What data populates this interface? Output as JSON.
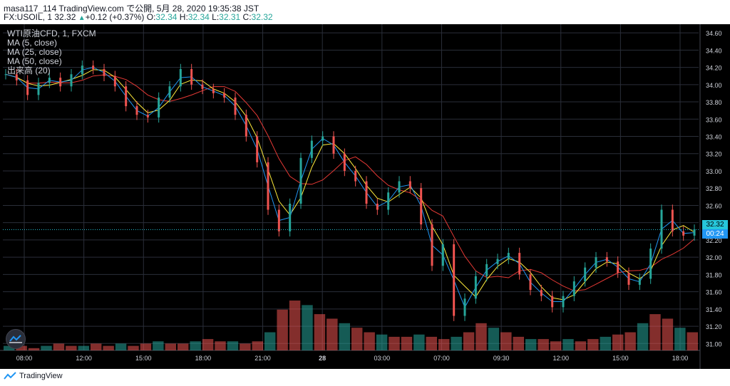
{
  "header": {
    "line1": "masa117_114 TradingView.com で公開, 5月 28, 2020 19:35:38 JST",
    "symbol": "FX:USOIL, 1",
    "last": "32.32",
    "change": "+0.12 (+0.37%)",
    "o_label": "O:",
    "o_value": "32.34",
    "h_label": "H:",
    "h_value": "32.34",
    "l_label": "L:",
    "l_value": "32.31",
    "c_label": "C:",
    "c_value": "32.32"
  },
  "legend": [
    "WTI原油CFD, 1, FXCM",
    "MA (5, close)",
    "MA (25, close)",
    "MA (50, close)",
    "出来高 (20)"
  ],
  "price_tags": {
    "last": "32.32",
    "countdown": "00:24"
  },
  "footer": {
    "brand": "TradingView"
  },
  "colors": {
    "up": "#26a69a",
    "down": "#ef5350",
    "ma5": "#2196f3",
    "ma25": "#ffeb3b",
    "ma50": "#e53935",
    "grid": "#2a2e39",
    "axis_text": "#d1d4dc"
  },
  "chart_data": {
    "type": "line",
    "title": "",
    "xlabel": "",
    "ylabel": "",
    "ylim": [
      30.92,
      34.7
    ],
    "y_ticks": [
      "34.60",
      "34.40",
      "34.20",
      "34.00",
      "33.80",
      "33.60",
      "33.40",
      "33.20",
      "33.00",
      "32.80",
      "32.60",
      "32.40",
      "32.20",
      "32.00",
      "31.80",
      "31.60",
      "31.40",
      "31.20",
      "31.00"
    ],
    "x_ticks": [
      "08:00",
      "12:00",
      "15:00",
      "18:00",
      "21:00",
      "28",
      "03:00",
      "07:00",
      "09:30",
      "12:00",
      "15:00",
      "18:00"
    ],
    "series": [
      {
        "x": [
          0,
          2,
          4,
          6,
          8,
          10,
          12,
          14,
          16,
          18,
          20,
          22,
          24,
          26,
          28,
          30,
          32,
          34,
          36,
          38,
          40,
          42,
          44,
          46,
          48,
          50,
          52,
          54,
          56,
          58,
          60,
          62,
          64,
          66,
          68,
          70,
          72,
          74,
          76,
          78,
          80,
          82,
          84,
          86,
          88,
          90,
          92,
          94,
          96,
          98,
          100
        ],
        "values": [
          34.12,
          34.05,
          33.88,
          34.02,
          34.08,
          33.98,
          34.12,
          34.22,
          34.18,
          34.1,
          33.98,
          33.75,
          33.65,
          33.62,
          33.85,
          33.98,
          34.18,
          34.0,
          33.95,
          33.9,
          33.85,
          33.65,
          33.4,
          33.1,
          32.55,
          32.3,
          32.62,
          33.15,
          33.35,
          33.4,
          33.2,
          33.0,
          32.88,
          32.62,
          32.55,
          32.75,
          32.88,
          32.8,
          32.38,
          31.9,
          32.15,
          31.32,
          31.52,
          31.78,
          31.92,
          31.98,
          32.05,
          31.8,
          31.62,
          31.55,
          31.42
        ]
      }
    ],
    "extended_values": [
      31.55,
      31.72,
      31.88,
      32.0,
      31.95,
      31.82,
      31.68,
      31.75,
      32.1,
      32.55,
      32.3,
      32.25,
      32.32
    ],
    "volume": [
      2,
      2,
      1,
      2,
      3,
      2,
      2,
      3,
      2,
      3,
      2,
      3,
      4,
      3,
      3,
      4,
      5,
      4,
      4,
      3,
      4,
      8,
      18,
      22,
      20,
      16,
      14,
      12,
      10,
      8,
      7,
      6,
      6,
      7,
      6,
      5,
      6,
      8,
      12,
      10,
      8,
      6,
      5,
      5,
      4,
      5,
      4,
      5,
      6,
      7,
      8,
      12,
      16,
      14,
      10,
      8
    ]
  }
}
